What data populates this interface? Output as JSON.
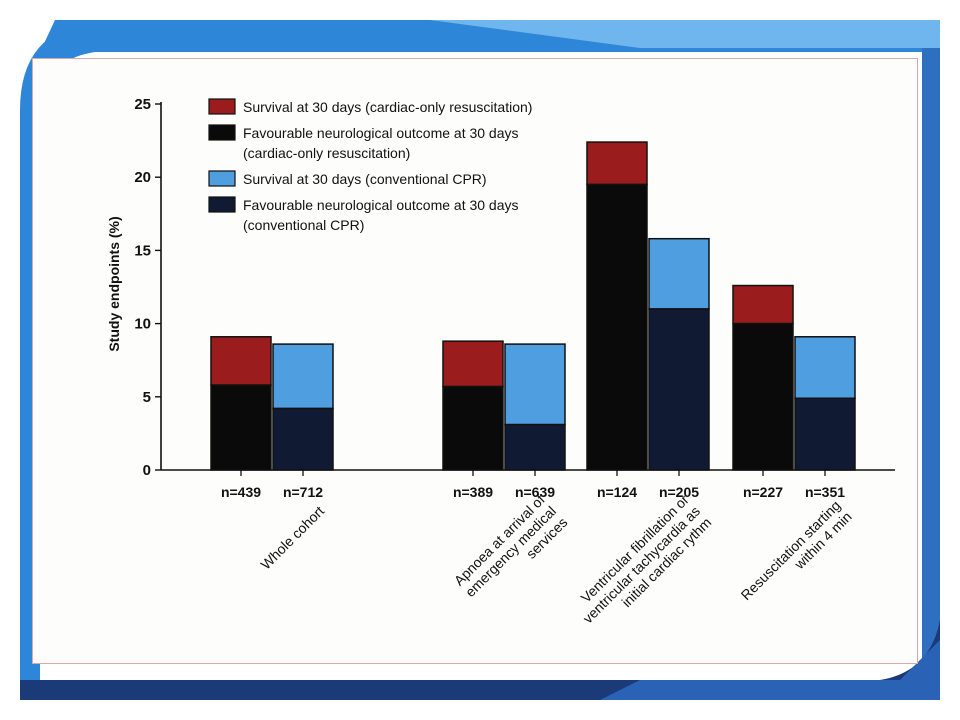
{
  "colors": {
    "cardiac_survival": "#9b1c1c",
    "cardiac_neuro": "#0a0a0a",
    "conventional_survival": "#4f9ee0",
    "conventional_neuro": "#111a33",
    "frame_blue": "#2e86d8",
    "frame_navy": "#1b3a78"
  },
  "chart_data": {
    "type": "bar",
    "stacked": true,
    "ylabel": "Study endpoints (%)",
    "ylim": [
      0,
      25
    ],
    "yticks": [
      "0",
      "5",
      "10",
      "15",
      "20",
      "25"
    ],
    "legend_placement": "top-left",
    "legend": [
      {
        "lines": [
          "Survival at 30 days (cardiac-only resuscitation)"
        ],
        "color_key": "cardiac_survival"
      },
      {
        "lines": [
          "Favourable neurological outcome at 30 days",
          "(cardiac-only resuscitation)"
        ],
        "color_key": "cardiac_neuro"
      },
      {
        "lines": [
          "Survival at 30 days (conventional CPR)"
        ],
        "color_key": "conventional_survival"
      },
      {
        "lines": [
          "Favourable neurological outcome at 30 days",
          "(conventional CPR)"
        ],
        "color_key": "conventional_neuro"
      }
    ],
    "groups": [
      {
        "label": [
          "Whole cohort"
        ],
        "bars": [
          {
            "method": "cardiac",
            "n": "n=439",
            "survival": 9.1,
            "neuro": 5.8
          },
          {
            "method": "conventional",
            "n": "n=712",
            "survival": 8.6,
            "neuro": 4.2
          }
        ]
      },
      {
        "label": [
          "Apnoea at arrival of",
          "emergency medical",
          "services"
        ],
        "bars": [
          {
            "method": "cardiac",
            "n": "n=389",
            "survival": 8.8,
            "neuro": 5.7
          },
          {
            "method": "conventional",
            "n": "n=639",
            "survival": 8.6,
            "neuro": 3.1
          }
        ]
      },
      {
        "label": [
          "Ventricular fibrillation or",
          "ventricular tachycardia as",
          "initial cardiac rythm"
        ],
        "bars": [
          {
            "method": "cardiac",
            "n": "n=124",
            "survival": 22.4,
            "neuro": 19.5
          },
          {
            "method": "conventional",
            "n": "n=205",
            "survival": 15.8,
            "neuro": 11.0
          }
        ]
      },
      {
        "label": [
          "Resuscitation starting",
          "within 4 min"
        ],
        "bars": [
          {
            "method": "cardiac",
            "n": "n=227",
            "survival": 12.6,
            "neuro": 10.0
          },
          {
            "method": "conventional",
            "n": "n=351",
            "survival": 9.1,
            "neuro": 4.9
          }
        ]
      }
    ]
  }
}
